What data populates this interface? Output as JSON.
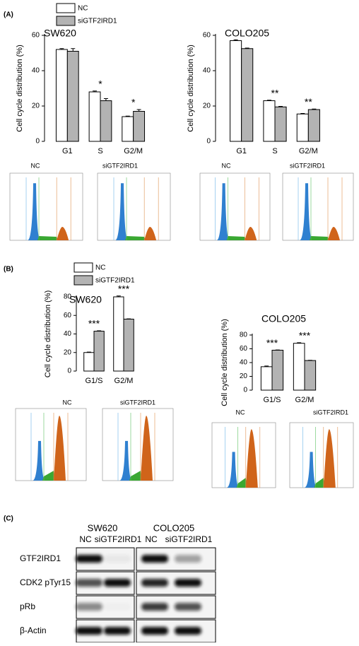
{
  "panel_labels": [
    "(A)",
    "(B)",
    "(C)"
  ],
  "chart_data": [
    {
      "type": "bar",
      "title": "SW620",
      "y_label": "Cell cycle distribution (%)",
      "categories": [
        "G1",
        "S",
        "G2/M"
      ],
      "ylim": [
        0,
        60
      ],
      "yticks": [
        0,
        20,
        40,
        60
      ],
      "series": [
        {
          "name": "NC",
          "color": "#ffffff",
          "values": [
            52,
            28,
            14
          ],
          "errors": [
            0.5,
            0.5,
            0.3
          ]
        },
        {
          "name": "siGTF2IRD1",
          "color": "#b3b3b3",
          "values": [
            51,
            23,
            17
          ],
          "errors": [
            1.5,
            1.2,
            1
          ]
        }
      ],
      "annotations": [
        null,
        "*",
        "*"
      ]
    },
    {
      "type": "bar",
      "title": "COLO205",
      "y_label": "Cell cycle distribution (%)",
      "categories": [
        "G1",
        "S",
        "G2/M"
      ],
      "ylim": [
        0,
        60
      ],
      "yticks": [
        0,
        20,
        40,
        60
      ],
      "series": [
        {
          "name": "NC",
          "color": "#ffffff",
          "values": [
            57,
            23,
            15.5
          ],
          "errors": [
            0.5,
            0.3,
            0.3
          ]
        },
        {
          "name": "siGTF2IRD1",
          "color": "#b3b3b3",
          "values": [
            52.5,
            19.5,
            18
          ],
          "errors": [
            0.3,
            0.3,
            0.3
          ]
        }
      ],
      "annotations": [
        null,
        "**",
        "**"
      ]
    },
    {
      "type": "bar",
      "title": "SW620",
      "y_label": "Cell cycle distribution (%)",
      "categories": [
        "G1/S",
        "G2/M"
      ],
      "ylim": [
        0,
        80
      ],
      "yticks": [
        0,
        20,
        40,
        60,
        80
      ],
      "series": [
        {
          "name": "NC",
          "color": "#ffffff",
          "values": [
            20,
            80
          ],
          "errors": [
            0.5,
            1
          ]
        },
        {
          "name": "siGTF2IRD1",
          "color": "#b3b3b3",
          "values": [
            43,
            56
          ],
          "errors": [
            0.4,
            0.3
          ]
        }
      ],
      "annotations": [
        "***",
        "***"
      ]
    },
    {
      "type": "bar",
      "title": "COLO205",
      "y_label": "Cell cycle distribution (%)",
      "categories": [
        "G1/S",
        "G2/M"
      ],
      "ylim": [
        0,
        80
      ],
      "yticks": [
        0,
        20,
        40,
        60,
        80
      ],
      "series": [
        {
          "name": "NC",
          "color": "#ffffff",
          "values": [
            34,
            68
          ],
          "errors": [
            1,
            0.8
          ]
        },
        {
          "name": "siGTF2IRD1",
          "color": "#b3b3b3",
          "values": [
            58,
            43
          ],
          "errors": [
            0.3,
            0.3
          ]
        }
      ],
      "annotations": [
        "***",
        "***"
      ]
    }
  ],
  "flow_titles": [
    "NC",
    "siGTF2IRD1",
    "NC",
    "siGTF2IRD1",
    "NC",
    "siGTF2IRD1",
    "NC",
    "siGTF2IRD1"
  ],
  "blot": {
    "cell_lines": [
      "SW620",
      "COLO205"
    ],
    "lanes": [
      "NC",
      "siGTF2IRD1",
      "NC",
      "siGTF2IRD1"
    ],
    "proteins": [
      "GTF2IRD1",
      "CDK2 pTyr15",
      "pRb",
      "β-Actin"
    ]
  }
}
